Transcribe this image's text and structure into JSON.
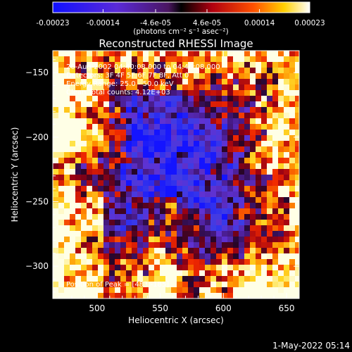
{
  "colorbar": {
    "tick_labels": [
      "-0.00023",
      "-0.00014",
      "-4.6e-05",
      "4.6e-05",
      "0.00014",
      "0.00023"
    ],
    "unit_label": "(photons cm⁻² s⁻¹ asec⁻²)",
    "min": -0.00023,
    "max": 0.00023
  },
  "chart_data": {
    "type": "heatmap",
    "title": "Reconstructed RHESSI Image",
    "xlabel": "Heliocentric X (arcsec)",
    "ylabel": "Heliocentric Y (arcsec)",
    "xlim": [
      465,
      660
    ],
    "ylim": [
      -325,
      -133
    ],
    "x_ticks": [
      "500",
      "550",
      "600",
      "650"
    ],
    "y_ticks": [
      "-150",
      "-200",
      "-250",
      "-300"
    ],
    "annotations": {
      "time_range": "20-Aug-2002 04:40:08.000 to 04:46:08.000",
      "detectors": "Detectors: 3F 4F 5F 6F 7F 8F, Att 0",
      "energy_range": "Energy Range: 25.0 - 50.0 keV",
      "method_counts": "Clean    Total counts: 4.12E+03",
      "peak_position": "Position of Peak = [483,-185]"
    },
    "grid": false,
    "colormap": "blue-purple-red-yellow-white",
    "intensity_pattern": "negative (blue/purple) values dominate the centre; positive (red/yellow/white) structures concentrated along left, bottom and right edges; peak near [483,-185]"
  },
  "timestamp": "1-May-2022 05:14"
}
